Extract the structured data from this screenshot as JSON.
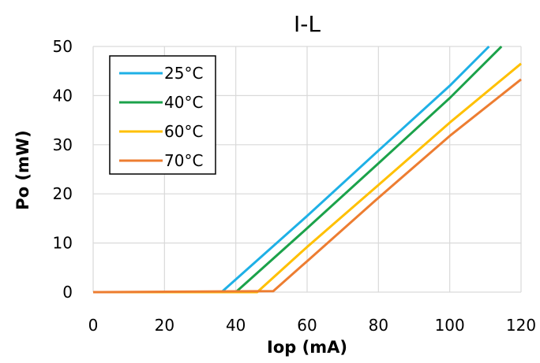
{
  "chart_data": {
    "type": "line",
    "title": "I-L",
    "xlabel": "Iop (mA)",
    "ylabel": "Po (mW)",
    "xlim": [
      0,
      120
    ],
    "ylim": [
      0,
      50
    ],
    "xticks": [
      "0",
      "20",
      "40",
      "60",
      "80",
      "100",
      "120"
    ],
    "yticks": [
      "0",
      "10",
      "20",
      "30",
      "40",
      "50"
    ],
    "grid": true,
    "legend": "top-left",
    "series": [
      {
        "name": "25°C",
        "color": "#1EB0E6",
        "x": [
          0,
          36,
          60,
          80,
          100,
          111
        ],
        "y": [
          0,
          0,
          15.5,
          28.8,
          42,
          50
        ]
      },
      {
        "name": "40°C",
        "color": "#1BA24A",
        "x": [
          0,
          40,
          60,
          80,
          100,
          114.5
        ],
        "y": [
          0,
          0,
          13,
          26.2,
          39.5,
          50
        ]
      },
      {
        "name": "60°C",
        "color": "#FFC000",
        "x": [
          0,
          46,
          60,
          80,
          100,
          120
        ],
        "y": [
          0,
          0,
          9.2,
          21.8,
          34.5,
          46.5
        ]
      },
      {
        "name": "70°C",
        "color": "#ED7D31",
        "x": [
          0,
          50.5,
          60,
          80,
          100,
          120
        ],
        "y": [
          0,
          0.2,
          6.3,
          19.2,
          31.8,
          43.3
        ]
      }
    ]
  }
}
